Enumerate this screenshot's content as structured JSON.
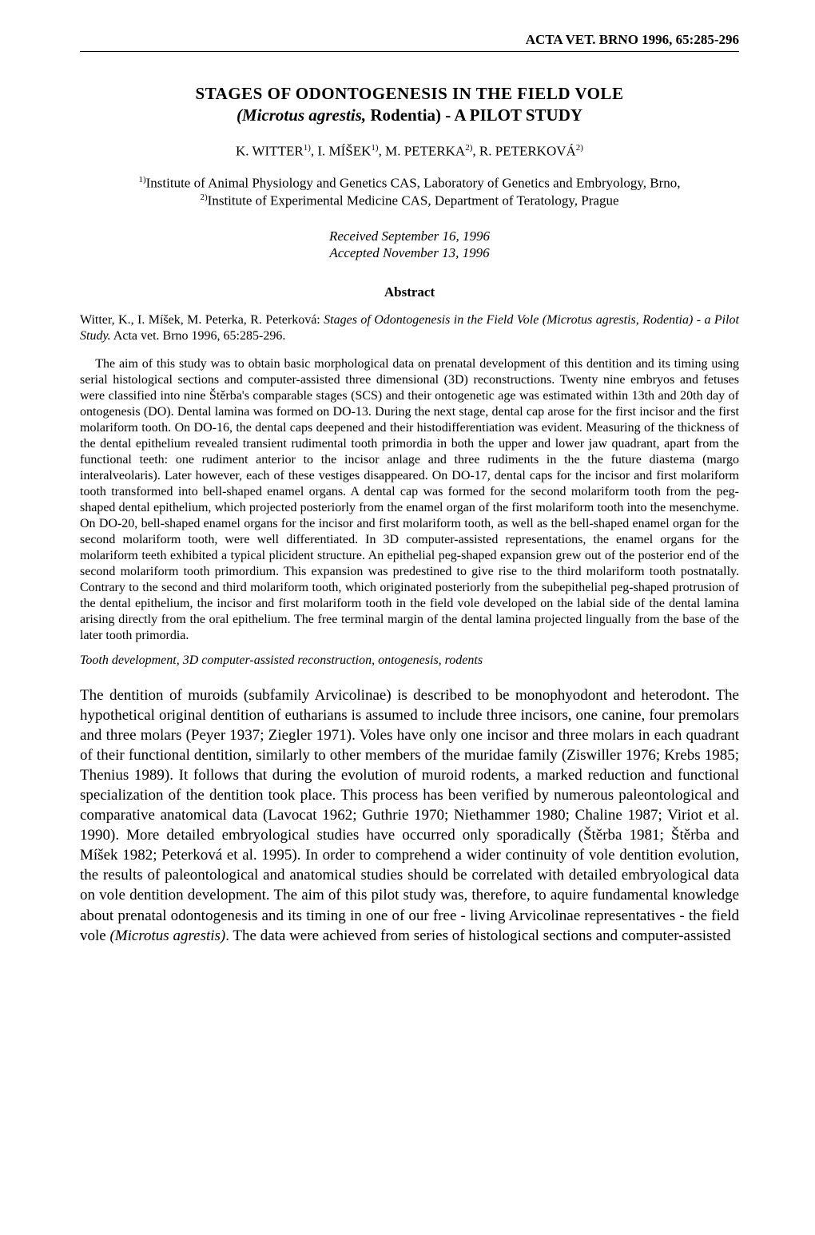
{
  "header": "ACTA VET. BRNO 1996, 65:285-296",
  "title_line1": "STAGES OF ODONTOGENESIS IN THE FIELD VOLE",
  "title_line2_italic": "(Microtus agrestis,",
  "title_line2_rest": " Rodentia) - A PILOT STUDY",
  "authors_html": "K. WITTER<sup>1)</sup>, I. MÍŠEK<sup>1)</sup>, M. PETERKA<sup>2)</sup>, R. PETERKOVÁ<sup>2)</sup>",
  "affiliation1": "Institute of Animal Physiology and Genetics CAS, Laboratory of Genetics and Embryology, Brno,",
  "affiliation2": "Institute of Experimental Medicine CAS, Department of Teratology, Prague",
  "received": "Received September 16, 1996",
  "accepted": "Accepted November 13, 1996",
  "abstract_heading": "Abstract",
  "citation_authors": "Witter, K., I. Míšek, M. Peterka, R. Peterková: ",
  "citation_title": "Stages of Odontogenesis in the Field Vole (Microtus agrestis, Rodentia) - a Pilot Study.",
  "citation_rest": " Acta vet. Brno 1996, 65:285-296.",
  "abstract_body": "The aim of this study was to obtain basic morphological data on prenatal development of this dentition and its timing using serial histological sections and computer-assisted three dimensional (3D) reconstructions. Twenty nine embryos and fetuses were classified into nine Štěrba's comparable stages (SCS) and their ontogenetic age was estimated within 13th and 20th day of ontogenesis (DO). Dental lamina was formed on DO-13. During the next stage, dental cap arose for the first incisor and the first molariform tooth. On DO-16, the dental caps deepened and their histodifferentiation was evident. Measuring of the thickness of the dental epithelium revealed transient rudimental tooth primordia in both the upper and lower jaw quadrant, apart from the functional teeth: one rudiment anterior to the incisor anlage and three rudiments in the the future diastema (margo interalveolaris). Later however, each of these vestiges disappeared. On DO-17, dental caps for the incisor and first molariform tooth transformed into bell-shaped enamel organs. A dental cap was formed for the second molariform tooth from the peg-shaped dental epithelium, which projected posteriorly from the enamel organ of the first molariform tooth into the mesenchyme. On DO-20, bell-shaped enamel organs for the incisor and first molariform tooth, as well as the bell-shaped enamel organ for the second molariform tooth, were well differentiated. In 3D computer-assisted representations, the enamel organs for the molariform teeth exhibited a typical plicident structure. An epithelial peg-shaped expansion grew out of the posterior end of the second molariform tooth primordium. This expansion was predestined to give rise to the third molariform tooth postnatally. Contrary to the second and third molariform tooth, which originated posteriorly from the subepithelial peg-shaped protrusion of the dental epithelium, the incisor and first molariform tooth in the field vole developed on the labial side of the dental lamina arising directly from the oral epithelium. The free terminal margin of the dental lamina projected lingually from the base of the later tooth primordia.",
  "keywords": "Tooth development, 3D computer-assisted reconstruction, ontogenesis, rodents",
  "intro_html": "The dentition of muroids (subfamily Arvicolinae) is described to be monophyodont and heterodont. The hypothetical original dentition of eutharians is assumed to include three incisors, one canine, four premolars and three molars (Peyer 1937; Ziegler 1971). Voles have only one incisor and three molars in each quadrant of their functional dentition, similarly to other members of the muridae family (Ziswiller 1976; Krebs 1985; Thenius 1989). It follows that during the evolution of muroid rodents, a marked reduction and functional specialization of the dentition took place. This process has been verified by numerous paleontological and comparative anatomical data (Lavocat 1962; Guthrie 1970; Niethammer 1980; Chaline 1987; Viriot et al. 1990). More detailed embryological studies have occurred only sporadically (Štěrba 1981; Štěrba and Míšek 1982; Peterková et al. 1995). In order to comprehend a wider continuity of vole dentition evolution, the results of paleontological and anatomical studies should be correlated with detailed embryological data on vole dentition development. The aim of this pilot study was, therefore, to aquire fundamental knowledge about prenatal odontogenesis and its timing in one of our free - living Arvicolinae representatives - the field vole <span class=\"italic\">(Microtus agrestis)</span>. The data were achieved from series of histological sections and computer-assisted"
}
